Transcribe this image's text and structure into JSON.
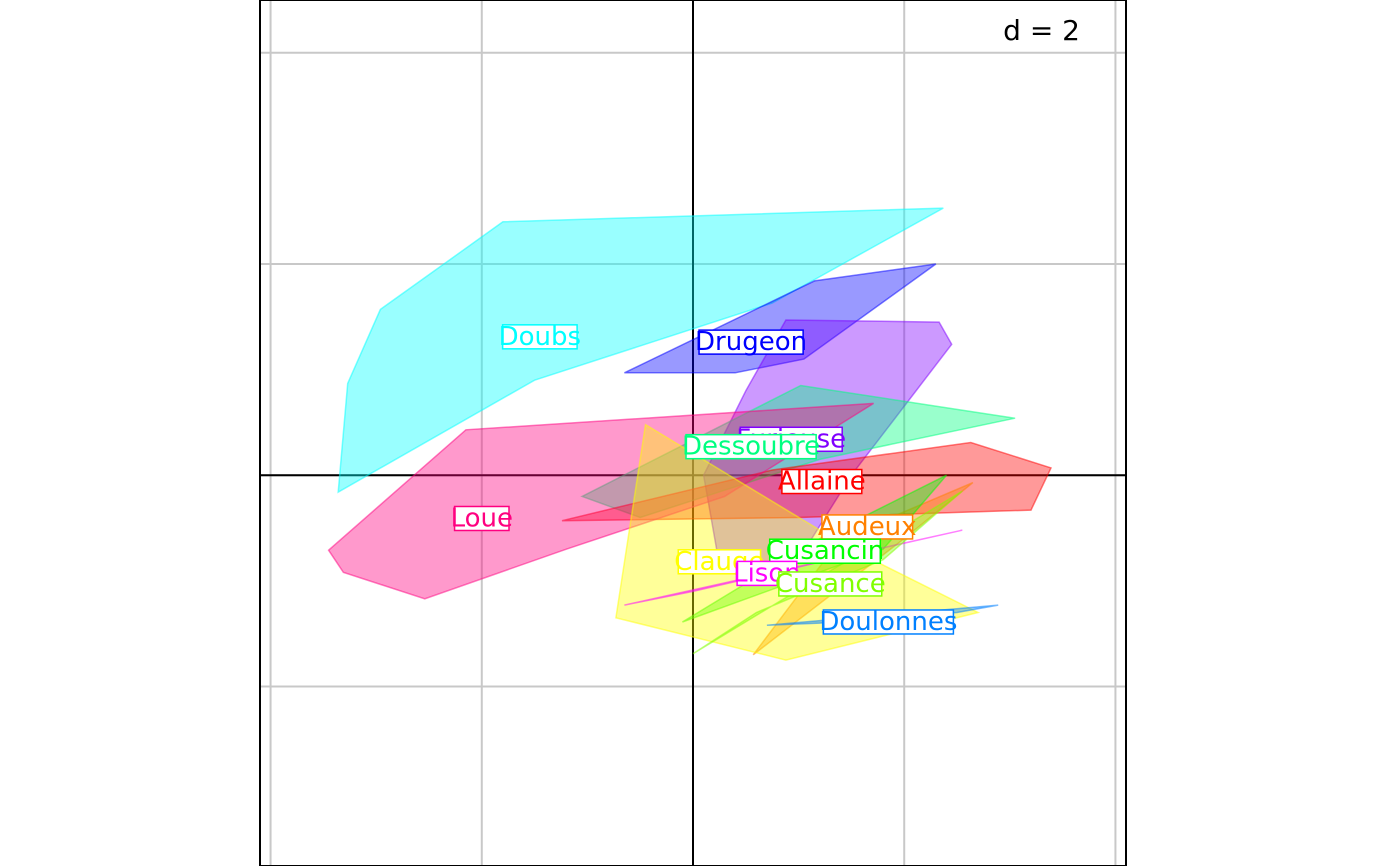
{
  "chart_data": {
    "type": "scatter",
    "scale_label": "d = 2",
    "grid": true,
    "legend": "none",
    "axes_through_origin": true,
    "xlim": [
      -4.1,
      4.1
    ],
    "ylim": [
      -3.7,
      4.5
    ],
    "groups": [
      {
        "name": "Doubs",
        "color": "#00FFFF",
        "label_at": [
          -1.45,
          1.32
        ],
        "hull": [
          [
            -3.36,
            -0.16
          ],
          [
            -3.27,
            0.87
          ],
          [
            -2.96,
            1.57
          ],
          [
            -1.8,
            2.4
          ],
          [
            2.37,
            2.53
          ],
          [
            0.75,
            1.63
          ],
          [
            -1.5,
            0.9
          ]
        ]
      },
      {
        "name": "Drugeon",
        "color": "#0000FF",
        "label_at": [
          0.55,
          1.27
        ],
        "hull": [
          [
            -0.65,
            0.97
          ],
          [
            1.15,
            1.84
          ],
          [
            2.3,
            2.0
          ],
          [
            1.05,
            1.1
          ],
          [
            0.4,
            0.97
          ]
        ]
      },
      {
        "name": "Furieuse",
        "color": "#8000FF",
        "label_at": [
          0.93,
          0.35
        ],
        "hull": [
          [
            0.1,
            0.0
          ],
          [
            0.5,
            0.8
          ],
          [
            0.88,
            1.47
          ],
          [
            2.33,
            1.45
          ],
          [
            2.45,
            1.24
          ],
          [
            1.5,
            0.0
          ],
          [
            1.0,
            -0.8
          ],
          [
            0.25,
            -0.85
          ]
        ]
      },
      {
        "name": "Dessoubre",
        "color": "#00FF80",
        "label_at": [
          0.55,
          0.28
        ],
        "hull": [
          [
            -1.05,
            -0.2
          ],
          [
            1.02,
            0.85
          ],
          [
            3.05,
            0.54
          ],
          [
            1.2,
            0.15
          ],
          [
            -0.5,
            -0.4
          ]
        ]
      },
      {
        "name": "Allaine",
        "color": "#FF0000",
        "label_at": [
          1.22,
          -0.05
        ],
        "hull": [
          [
            -1.24,
            -0.43
          ],
          [
            0.75,
            0.05
          ],
          [
            2.63,
            0.31
          ],
          [
            3.39,
            0.07
          ],
          [
            3.2,
            -0.33
          ],
          [
            1.0,
            -0.4
          ]
        ]
      },
      {
        "name": "Loue",
        "color": "#FF0080",
        "label_at": [
          -2.0,
          -0.4
        ],
        "hull": [
          [
            -3.45,
            -0.71
          ],
          [
            -2.15,
            0.43
          ],
          [
            1.71,
            0.68
          ],
          [
            0.3,
            -0.2
          ],
          [
            -1.2,
            -0.7
          ],
          [
            -2.54,
            -1.17
          ],
          [
            -3.31,
            -0.92
          ]
        ]
      },
      {
        "name": "Audeux",
        "color": "#FF8000",
        "label_at": [
          1.65,
          -0.48
        ],
        "hull": [
          [
            0.57,
            -1.7
          ],
          [
            1.4,
            -0.6
          ],
          [
            2.65,
            -0.07
          ],
          [
            2.0,
            -0.6
          ]
        ]
      },
      {
        "name": "Cusancin",
        "color": "#00FF00",
        "label_at": [
          1.25,
          -0.71
        ],
        "hull": [
          [
            -0.1,
            -1.39
          ],
          [
            1.2,
            -0.6
          ],
          [
            2.4,
            0.0
          ],
          [
            1.8,
            -0.7
          ]
        ]
      },
      {
        "name": "Clauge",
        "color": "#FFFF00",
        "label_at": [
          0.25,
          -0.81
        ],
        "hull": [
          [
            -0.45,
            0.48
          ],
          [
            -0.73,
            -1.35
          ],
          [
            0.88,
            -1.75
          ],
          [
            2.7,
            -1.3
          ],
          [
            1.5,
            -0.7
          ]
        ]
      },
      {
        "name": "Lison",
        "color": "#FF00FF",
        "label_at": [
          0.7,
          -0.92
        ],
        "hull": [
          [
            -0.65,
            -1.23
          ],
          [
            2.55,
            -0.52
          ],
          [
            1.3,
            -0.8
          ],
          [
            0.0,
            -1.1
          ]
        ]
      },
      {
        "name": "Cusance",
        "color": "#80FF00",
        "label_at": [
          1.3,
          -1.02
        ],
        "hull": [
          [
            0.0,
            -1.69
          ],
          [
            2.55,
            -0.15
          ],
          [
            1.8,
            -0.8
          ],
          [
            0.6,
            -1.3
          ]
        ]
      },
      {
        "name": "Doulonnes",
        "color": "#0080FF",
        "label_at": [
          1.85,
          -1.38
        ],
        "hull": [
          [
            0.7,
            -1.42
          ],
          [
            2.89,
            -1.23
          ],
          [
            2.5,
            -1.3
          ],
          [
            1.2,
            -1.4
          ]
        ]
      }
    ],
    "visible_grid_x": [
      -4,
      -2,
      0,
      2,
      4
    ],
    "visible_grid_y": [
      -2,
      0,
      2,
      4
    ]
  }
}
